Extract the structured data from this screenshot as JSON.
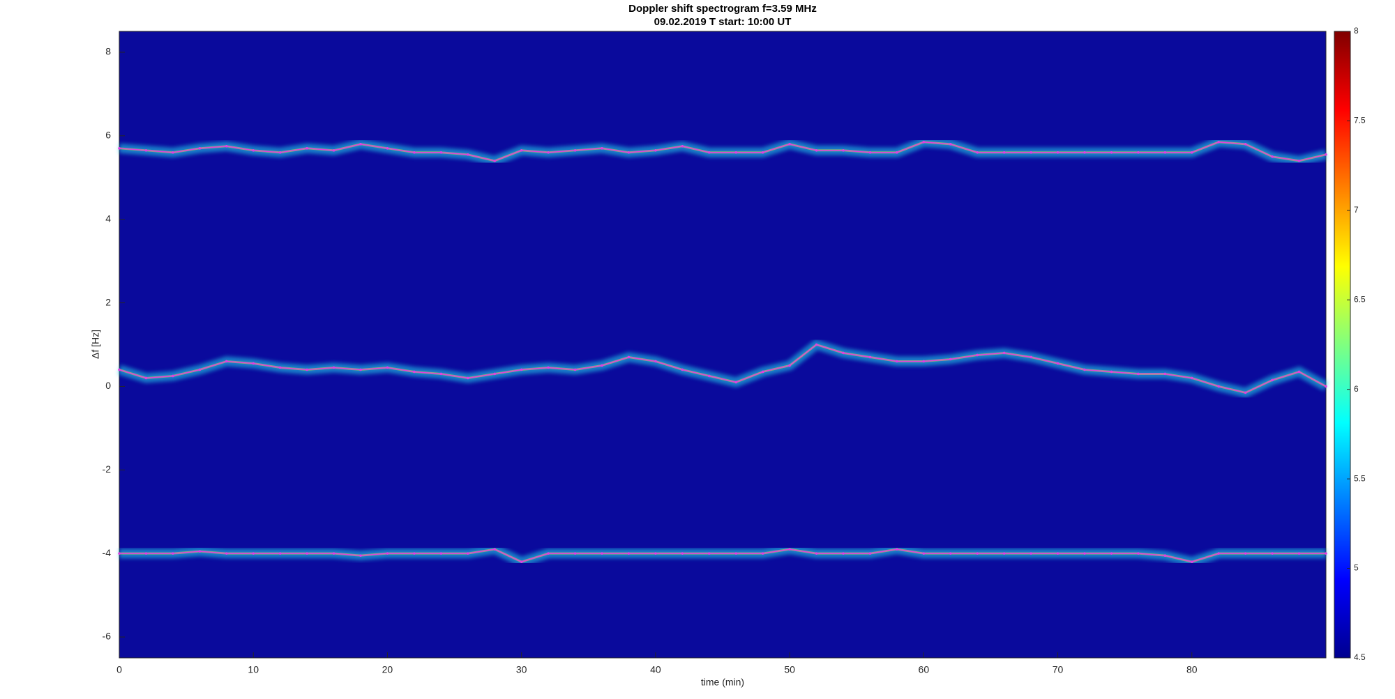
{
  "chart_data": {
    "type": "spectrogram",
    "title": "Doppler shift spectrogram f=3.59 MHz",
    "subtitle": "09.02.2019   T start: 10:00 UT",
    "xlabel": "time (min)",
    "ylabel": "Δf [Hz]",
    "xlim": [
      0,
      90
    ],
    "ylim": [
      -6.5,
      8.5
    ],
    "xticks": [
      0,
      10,
      20,
      30,
      40,
      50,
      60,
      70,
      80
    ],
    "yticks": [
      -6,
      -4,
      -2,
      0,
      2,
      4,
      6,
      8
    ],
    "clim": [
      4.5,
      8
    ],
    "cticks": [
      4.5,
      5,
      5.5,
      6,
      6.5,
      7,
      7.5,
      8
    ],
    "x": [
      0,
      2,
      4,
      6,
      8,
      10,
      12,
      14,
      16,
      18,
      20,
      22,
      24,
      26,
      28,
      30,
      32,
      34,
      36,
      38,
      40,
      42,
      44,
      46,
      48,
      50,
      52,
      54,
      56,
      58,
      60,
      62,
      64,
      66,
      68,
      70,
      72,
      74,
      76,
      78,
      80,
      82,
      84,
      86,
      88,
      90
    ],
    "series": [
      {
        "color": "#e040e0",
        "values": [
          5.7,
          5.65,
          5.6,
          5.7,
          5.75,
          5.65,
          5.6,
          5.7,
          5.65,
          5.8,
          5.7,
          5.6,
          5.6,
          5.55,
          5.4,
          5.65,
          5.6,
          5.65,
          5.7,
          5.6,
          5.65,
          5.75,
          5.6,
          5.6,
          5.6,
          5.8,
          5.65,
          5.65,
          5.6,
          5.6,
          5.85,
          5.8,
          5.6,
          5.6,
          5.6,
          5.6,
          5.6,
          5.6,
          5.6,
          5.6,
          5.6,
          5.85,
          5.8,
          5.5,
          5.4,
          5.55
        ]
      },
      {
        "color": "#e040e0",
        "values": [
          0.4,
          0.2,
          0.25,
          0.4,
          0.6,
          0.55,
          0.45,
          0.4,
          0.45,
          0.4,
          0.45,
          0.35,
          0.3,
          0.2,
          0.3,
          0.4,
          0.45,
          0.4,
          0.5,
          0.7,
          0.6,
          0.4,
          0.25,
          0.1,
          0.35,
          0.5,
          1.0,
          0.8,
          0.7,
          0.6,
          0.6,
          0.65,
          0.75,
          0.8,
          0.7,
          0.55,
          0.4,
          0.35,
          0.3,
          0.3,
          0.2,
          0.0,
          -0.15,
          0.15,
          0.35,
          0.0
        ]
      },
      {
        "color": "#e040e0",
        "values": [
          -4,
          -4,
          -4,
          -3.95,
          -4,
          -4,
          -4,
          -4,
          -4,
          -4.05,
          -4,
          -4,
          -4,
          -4,
          -3.9,
          -4.2,
          -4,
          -4,
          -4,
          -4,
          -4,
          -4,
          -4,
          -4,
          -4,
          -3.9,
          -4,
          -4,
          -4,
          -3.9,
          -4,
          -4,
          -4,
          -4,
          -4,
          -4,
          -4,
          -4,
          -4,
          -4.05,
          -4.2,
          -4,
          -4,
          -4,
          -4,
          -4
        ]
      }
    ]
  }
}
